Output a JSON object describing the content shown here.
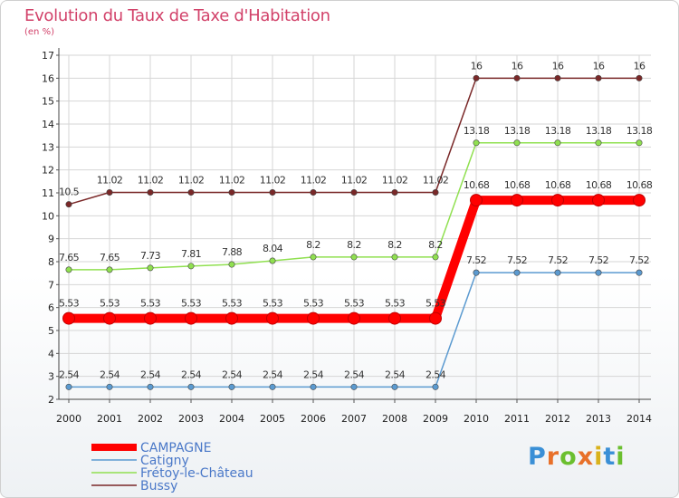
{
  "header": {
    "title": "Evolution du Taux de Taxe d'Habitation",
    "subtitle": "(en %)"
  },
  "logo": {
    "text": "Proxiti",
    "letter_colors": [
      "#3a8fd6",
      "#e8702a",
      "#6bbf2f",
      "#e8702a",
      "#d9b21c",
      "#3a8fd6",
      "#6bbf2f"
    ]
  },
  "chart_data": {
    "type": "line",
    "title": "Evolution du Taux de Taxe d'Habitation",
    "ylabel": "(en %)",
    "xlabel": "",
    "x": [
      "2000",
      "2001",
      "2002",
      "2003",
      "2004",
      "2005",
      "2006",
      "2007",
      "2008",
      "2009",
      "2010",
      "2011",
      "2012",
      "2013",
      "2014"
    ],
    "ylim": [
      2,
      17
    ],
    "yticks": [
      2,
      3,
      4,
      5,
      6,
      7,
      8,
      9,
      10,
      11,
      12,
      13,
      14,
      15,
      16,
      17
    ],
    "grid": true,
    "legend_position": "bottom-left",
    "series": [
      {
        "name": "CAMPAGNE",
        "color": "#ff0000",
        "highlight": true,
        "values": [
          5.53,
          5.53,
          5.53,
          5.53,
          5.53,
          5.53,
          5.53,
          5.53,
          5.53,
          5.53,
          10.68,
          10.68,
          10.68,
          10.68,
          10.68
        ],
        "labels": [
          "5.53",
          "5.53",
          "5.53",
          "5.53",
          "5.53",
          "5.53",
          "5.53",
          "5.53",
          "5.53",
          "5.53",
          "10.68",
          "10.68",
          "10.68",
          "10.68",
          "10.68"
        ]
      },
      {
        "name": "Catigny",
        "color": "#5b9ad0",
        "values": [
          2.54,
          2.54,
          2.54,
          2.54,
          2.54,
          2.54,
          2.54,
          2.54,
          2.54,
          2.54,
          7.52,
          7.52,
          7.52,
          7.52,
          7.52
        ],
        "labels": [
          "2.54",
          "2.54",
          "2.54",
          "2.54",
          "2.54",
          "2.54",
          "2.54",
          "2.54",
          "2.54",
          "2.54",
          "7.52",
          "7.52",
          "7.52",
          "7.52",
          "7.52"
        ]
      },
      {
        "name": "Frétoy-le-Château",
        "color": "#90e050",
        "values": [
          7.65,
          7.65,
          7.73,
          7.81,
          7.88,
          8.04,
          8.2,
          8.2,
          8.2,
          8.2,
          13.18,
          13.18,
          13.18,
          13.18,
          13.18
        ],
        "labels": [
          "7.65",
          "7.65",
          "7.73",
          "7.81",
          "7.88",
          "8.04",
          "8.2",
          "8.2",
          "8.2",
          "8.2",
          "13.18",
          "13.18",
          "13.18",
          "13.18",
          "13.18"
        ]
      },
      {
        "name": "Bussy",
        "color": "#7a2828",
        "values": [
          10.5,
          11.02,
          11.02,
          11.02,
          11.02,
          11.02,
          11.02,
          11.02,
          11.02,
          11.02,
          16,
          16,
          16,
          16,
          16
        ],
        "labels": [
          "10.5",
          "11.02",
          "11.02",
          "11.02",
          "11.02",
          "11.02",
          "11.02",
          "11.02",
          "11.02",
          "11.02",
          "16",
          "16",
          "16",
          "16",
          "16"
        ]
      }
    ]
  }
}
